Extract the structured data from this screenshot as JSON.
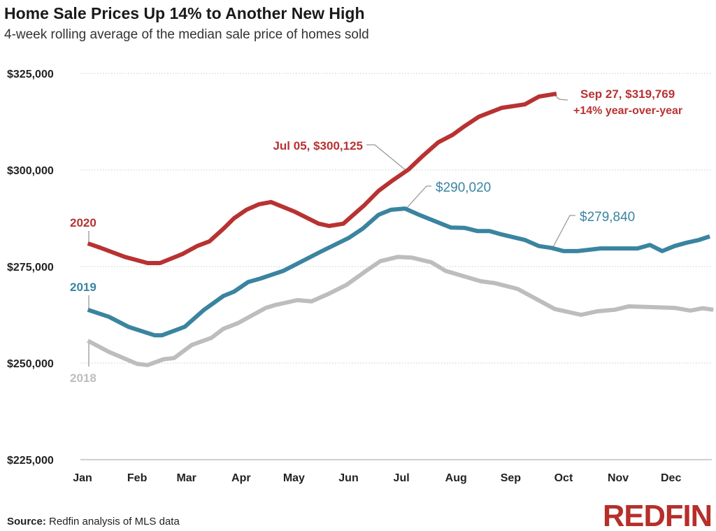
{
  "chart_data": {
    "type": "line",
    "title": "Home Sale Prices Up 14% to Another New High",
    "subtitle": "4-week rolling average of the median sale price of homes sold",
    "xlabel": "",
    "ylabel": "",
    "ylim": [
      225000,
      325000
    ],
    "y_ticks": [
      "$325,000",
      "$300,000",
      "$275,000",
      "$250,000",
      "$225,000"
    ],
    "y_tick_values": [
      325000,
      300000,
      275000,
      250000,
      225000
    ],
    "x_ticks": [
      "Jan",
      "Feb",
      "Mar",
      "Apr",
      "May",
      "Jun",
      "Jul",
      "Aug",
      "Sep",
      "Oct",
      "Nov",
      "Dec"
    ],
    "grid": "horizontal dotted",
    "series": [
      {
        "name": "2018",
        "color": "#bdbdbd",
        "points": [
          [
            "Jan 04",
            255800
          ],
          [
            "Jan 16",
            252900
          ],
          [
            "Feb 01",
            249800
          ],
          [
            "Feb 07",
            249500
          ],
          [
            "Feb 16",
            251000
          ],
          [
            "Feb 22",
            251300
          ],
          [
            "Mar 04",
            254700
          ],
          [
            "Mar 15",
            256500
          ],
          [
            "Mar 22",
            258900
          ],
          [
            "Mar 30",
            260300
          ],
          [
            "Apr 15",
            264300
          ],
          [
            "Apr 20",
            265000
          ],
          [
            "May 03",
            266300
          ],
          [
            "May 11",
            266000
          ],
          [
            "May 21",
            268000
          ],
          [
            "May 31",
            270300
          ],
          [
            "Jun 11",
            273900
          ],
          [
            "Jun 19",
            276400
          ],
          [
            "Jun 29",
            277500
          ],
          [
            "Jul 07",
            277300
          ],
          [
            "Jul 18",
            276100
          ],
          [
            "Jul 26",
            273900
          ],
          [
            "Aug 15",
            271200
          ],
          [
            "Aug 23",
            270700
          ],
          [
            "Sep 05",
            269200
          ],
          [
            "Sep 26",
            264000
          ],
          [
            "Oct 11",
            262500
          ],
          [
            "Oct 20",
            263400
          ],
          [
            "Oct 30",
            263800
          ],
          [
            "Nov 07",
            264700
          ],
          [
            "Dec 03",
            264300
          ],
          [
            "Dec 12",
            263600
          ],
          [
            "Dec 19",
            264200
          ],
          [
            "Dec 25",
            263800
          ]
        ]
      },
      {
        "name": "2019",
        "color": "#3a84a0",
        "points": [
          [
            "Jan 04",
            263800
          ],
          [
            "Jan 16",
            262000
          ],
          [
            "Jan 27",
            259400
          ],
          [
            "Feb 11",
            257200
          ],
          [
            "Feb 15",
            257200
          ],
          [
            "Feb 28",
            259400
          ],
          [
            "Mar 11",
            263800
          ],
          [
            "Mar 22",
            267400
          ],
          [
            "Mar 28",
            268500
          ],
          [
            "Apr 05",
            271000
          ],
          [
            "Apr 12",
            271900
          ],
          [
            "Apr 25",
            273900
          ],
          [
            "May 16",
            278800
          ],
          [
            "Jun 01",
            282400
          ],
          [
            "Jun 09",
            284800
          ],
          [
            "Jun 18",
            288400
          ],
          [
            "Jun 25",
            289700
          ],
          [
            "Jul 03",
            290020
          ],
          [
            "Jul 11",
            288400
          ],
          [
            "Jul 29",
            285100
          ],
          [
            "Aug 06",
            285000
          ],
          [
            "Aug 13",
            284200
          ],
          [
            "Aug 20",
            284200
          ],
          [
            "Aug 27",
            283300
          ],
          [
            "Sep 09",
            281900
          ],
          [
            "Sep 17",
            280300
          ],
          [
            "Sep 24",
            279840
          ],
          [
            "Oct 01",
            279000
          ],
          [
            "Oct 09",
            279000
          ],
          [
            "Oct 22",
            279700
          ],
          [
            "Nov 12",
            279700
          ],
          [
            "Nov 19",
            280600
          ],
          [
            "Nov 26",
            279000
          ],
          [
            "Dec 03",
            280300
          ],
          [
            "Dec 10",
            281200
          ],
          [
            "Dec 17",
            281900
          ],
          [
            "Dec 23",
            282800
          ]
        ]
      },
      {
        "name": "2020",
        "color": "#b83232",
        "points": [
          [
            "Jan 04",
            281000
          ],
          [
            "Jan 11",
            279900
          ],
          [
            "Jan 25",
            277500
          ],
          [
            "Feb 07",
            275900
          ],
          [
            "Feb 14",
            275900
          ],
          [
            "Feb 27",
            278300
          ],
          [
            "Mar 07",
            280300
          ],
          [
            "Mar 14",
            281500
          ],
          [
            "Mar 22",
            284800
          ],
          [
            "Mar 28",
            287500
          ],
          [
            "Apr 04",
            289700
          ],
          [
            "Apr 11",
            291100
          ],
          [
            "Apr 18",
            291700
          ],
          [
            "May 01",
            289300
          ],
          [
            "May 15",
            286100
          ],
          [
            "May 21",
            285500
          ],
          [
            "May 29",
            286100
          ],
          [
            "Jun 10",
            290900
          ],
          [
            "Jun 18",
            294600
          ],
          [
            "Jun 26",
            297300
          ],
          [
            "Jul 05",
            300125
          ],
          [
            "Jul 13",
            303600
          ],
          [
            "Jul 22",
            307200
          ],
          [
            "Jul 30",
            309100
          ],
          [
            "Aug 06",
            311400
          ],
          [
            "Aug 14",
            313800
          ],
          [
            "Aug 27",
            316100
          ],
          [
            "Sep 09",
            317000
          ],
          [
            "Sep 17",
            319000
          ],
          [
            "Sep 27",
            319769
          ]
        ]
      }
    ],
    "annotations": {
      "label_2020": "2020",
      "label_2019": "2019",
      "label_2018": "2018",
      "jul05": "Jul 05, $300,125",
      "sep27": "Sep 27, $319,769",
      "sep27_yoy": "+14% year-over-year",
      "peak_2019": "$290,020",
      "sep_2019": "$279,840"
    }
  },
  "footer": {
    "source_label": "Source:",
    "source_text": " Redfin analysis of MLS data",
    "logo": "REDFIN"
  },
  "colors": {
    "red": "#b83232",
    "blue": "#3a84a0",
    "gray": "#bdbdbd",
    "logo": "#b52f2b"
  }
}
